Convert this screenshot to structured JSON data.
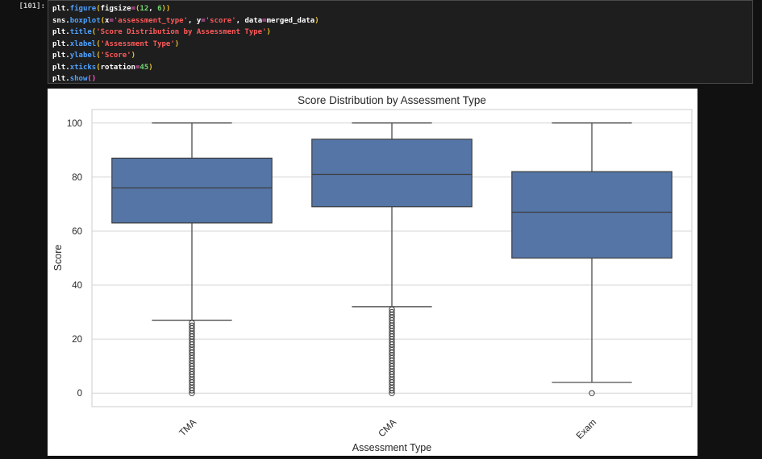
{
  "cell": {
    "prompt": "[101]:",
    "code_lines": [
      [
        [
          "tok-obj",
          "plt."
        ],
        [
          "tok-fn",
          "figure"
        ],
        [
          "tok-punc",
          "("
        ],
        [
          "tok-kw",
          "figsize"
        ],
        [
          "tok-eq",
          "="
        ],
        [
          "tok-punc",
          "("
        ],
        [
          "tok-num",
          "12"
        ],
        [
          "tok-obj",
          ", "
        ],
        [
          "tok-num",
          "6"
        ],
        [
          "tok-punc",
          "))"
        ]
      ],
      [
        [
          "tok-obj",
          "sns."
        ],
        [
          "tok-fn",
          "boxplot"
        ],
        [
          "tok-punc",
          "("
        ],
        [
          "tok-kw",
          "x"
        ],
        [
          "tok-eq",
          "="
        ],
        [
          "tok-str",
          "'assessment_type'"
        ],
        [
          "tok-obj",
          ", "
        ],
        [
          "tok-kw",
          "y"
        ],
        [
          "tok-eq",
          "="
        ],
        [
          "tok-str",
          "'score'"
        ],
        [
          "tok-obj",
          ", "
        ],
        [
          "tok-kw",
          "data"
        ],
        [
          "tok-eq",
          "="
        ],
        [
          "tok-kw",
          "merged_data"
        ],
        [
          "tok-punc",
          ")"
        ]
      ],
      [
        [
          "tok-obj",
          "plt."
        ],
        [
          "tok-fn",
          "title"
        ],
        [
          "tok-punc",
          "("
        ],
        [
          "tok-str",
          "'Score Distribution by Assessment Type'"
        ],
        [
          "tok-punc",
          ")"
        ]
      ],
      [
        [
          "tok-obj",
          "plt."
        ],
        [
          "tok-fn",
          "xlabel"
        ],
        [
          "tok-punc",
          "("
        ],
        [
          "tok-str",
          "'Assessment Type'"
        ],
        [
          "tok-punc",
          ")"
        ]
      ],
      [
        [
          "tok-obj",
          "plt."
        ],
        [
          "tok-fn",
          "ylabel"
        ],
        [
          "tok-punc",
          "("
        ],
        [
          "tok-str",
          "'Score'"
        ],
        [
          "tok-punc",
          ")"
        ]
      ],
      [
        [
          "tok-obj",
          "plt."
        ],
        [
          "tok-fn",
          "xticks"
        ],
        [
          "tok-punc",
          "("
        ],
        [
          "tok-kw",
          "rotation"
        ],
        [
          "tok-eq",
          "="
        ],
        [
          "tok-num",
          "45"
        ],
        [
          "tok-punc",
          ")"
        ]
      ],
      [
        [
          "tok-obj",
          "plt."
        ],
        [
          "tok-fn",
          "show"
        ],
        [
          "tok-paren-inner",
          "()"
        ]
      ]
    ]
  },
  "chart_data": {
    "type": "box",
    "title": "Score Distribution by Assessment Type",
    "xlabel": "Assessment Type",
    "ylabel": "Score",
    "ylim": [
      -5,
      105
    ],
    "yticks": [
      0,
      20,
      40,
      60,
      80,
      100
    ],
    "grid": true,
    "box_color": "#5475a6",
    "edge_color": "#3c3c3c",
    "categories": [
      "TMA",
      "CMA",
      "Exam"
    ],
    "boxes": [
      {
        "name": "TMA",
        "whisker_low": 27,
        "q1": 63,
        "median": 76,
        "q3": 87,
        "whisker_high": 100,
        "outliers": [
          0,
          1,
          2,
          3,
          4,
          5,
          6,
          7,
          8,
          9,
          10,
          11,
          12,
          13,
          14,
          15,
          16,
          17,
          18,
          19,
          20,
          21,
          22,
          23,
          24,
          25,
          26
        ]
      },
      {
        "name": "CMA",
        "whisker_low": 32,
        "q1": 69,
        "median": 81,
        "q3": 94,
        "whisker_high": 100,
        "outliers": [
          0,
          1,
          2,
          3,
          4,
          5,
          6,
          7,
          8,
          9,
          10,
          11,
          12,
          13,
          14,
          15,
          16,
          17,
          18,
          19,
          20,
          21,
          22,
          23,
          24,
          25,
          26,
          27,
          28,
          29,
          30,
          31
        ]
      },
      {
        "name": "Exam",
        "whisker_low": 4,
        "q1": 50,
        "median": 67,
        "q3": 82,
        "whisker_high": 100,
        "outliers": [
          0
        ]
      }
    ]
  }
}
